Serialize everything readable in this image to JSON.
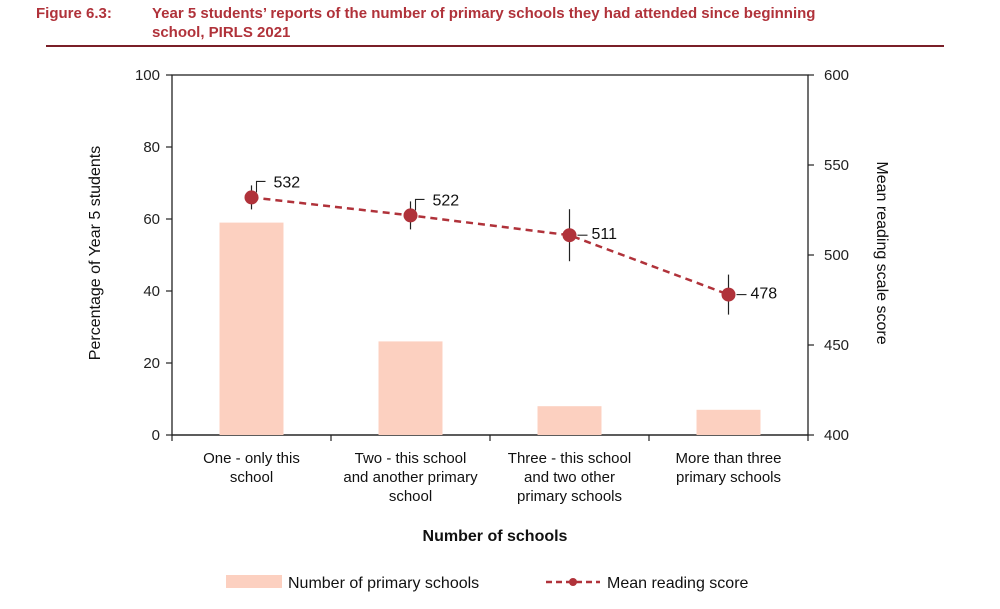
{
  "figure": {
    "label": "Figure 6.3:",
    "title_line1": "Year 5 students’ reports of the number of primary schools they had attended since beginning",
    "title_line2": "school, PIRLS 2021"
  },
  "colors": {
    "title": "#b0323a",
    "bar": "#fcd0c0",
    "line": "#b0323a",
    "marker": "#b0323a"
  },
  "chart_data": {
    "type": "bar+line",
    "categories": [
      [
        "One - only this",
        "school"
      ],
      [
        "Two - this school",
        "and another primary",
        "school"
      ],
      [
        "Three - this school",
        "and two other",
        "primary schools"
      ],
      [
        "More than three",
        "primary schools"
      ]
    ],
    "bars": {
      "name": "Number of primary schools",
      "values": [
        59,
        26,
        8,
        7
      ],
      "axis": "left"
    },
    "line": {
      "name": "Mean reading score",
      "values": [
        532,
        522,
        511,
        478
      ],
      "data_labels": [
        "532",
        "522",
        "511",
        "478"
      ],
      "axis": "right"
    },
    "xlabel": "Number of schools",
    "ylabel_left": "Percentage of Year 5 students",
    "ylabel_right": "Mean reading scale score",
    "ylim_left": [
      0,
      100
    ],
    "yticks_left": [
      0,
      20,
      40,
      60,
      80,
      100
    ],
    "ylim_right": [
      400,
      600
    ],
    "yticks_right": [
      400,
      450,
      500,
      550,
      600
    ],
    "grid": false,
    "legend_position": "bottom"
  }
}
